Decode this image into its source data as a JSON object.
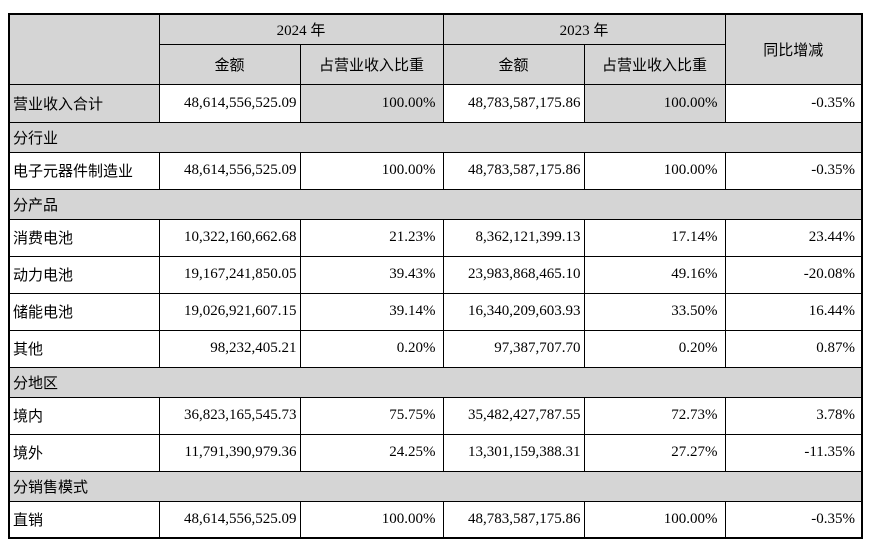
{
  "table": {
    "header": {
      "year_2024": "2024 年",
      "year_2023": "2023 年",
      "yoy": "同比增减",
      "amount": "金额",
      "ratio": "占营业收入比重"
    },
    "colors": {
      "shading_gray": "#d5d5d5",
      "border": "#000000",
      "cell_white": "#ffffff"
    },
    "rows": [
      {
        "type": "data",
        "label": "营业收入合计",
        "amount_2024": "48,614,556,525.09",
        "ratio_2024": "100.00%",
        "amount_2023": "48,783,587,175.86",
        "ratio_2023": "100.00%",
        "yoy": "-0.35%"
      },
      {
        "type": "section",
        "label": "分行业"
      },
      {
        "type": "data",
        "label": "电子元器件制造业",
        "amount_2024": "48,614,556,525.09",
        "ratio_2024": "100.00%",
        "amount_2023": "48,783,587,175.86",
        "ratio_2023": "100.00%",
        "yoy": "-0.35%"
      },
      {
        "type": "section",
        "label": "分产品"
      },
      {
        "type": "data",
        "label": "消费电池",
        "amount_2024": "10,322,160,662.68",
        "ratio_2024": "21.23%",
        "amount_2023": "8,362,121,399.13",
        "ratio_2023": "17.14%",
        "yoy": "23.44%"
      },
      {
        "type": "data",
        "label": "动力电池",
        "amount_2024": "19,167,241,850.05",
        "ratio_2024": "39.43%",
        "amount_2023": "23,983,868,465.10",
        "ratio_2023": "49.16%",
        "yoy": "-20.08%"
      },
      {
        "type": "data",
        "label": "储能电池",
        "amount_2024": "19,026,921,607.15",
        "ratio_2024": "39.14%",
        "amount_2023": "16,340,209,603.93",
        "ratio_2023": "33.50%",
        "yoy": "16.44%"
      },
      {
        "type": "data",
        "label": "其他",
        "amount_2024": "98,232,405.21",
        "ratio_2024": "0.20%",
        "amount_2023": "97,387,707.70",
        "ratio_2023": "0.20%",
        "yoy": "0.87%"
      },
      {
        "type": "section",
        "label": "分地区"
      },
      {
        "type": "data",
        "label": "境内",
        "amount_2024": "36,823,165,545.73",
        "ratio_2024": "75.75%",
        "amount_2023": "35,482,427,787.55",
        "ratio_2023": "72.73%",
        "yoy": "3.78%"
      },
      {
        "type": "data",
        "label": "境外",
        "amount_2024": "11,791,390,979.36",
        "ratio_2024": "24.25%",
        "amount_2023": "13,301,159,388.31",
        "ratio_2023": "27.27%",
        "yoy": "-11.35%"
      },
      {
        "type": "section",
        "label": "分销售模式"
      },
      {
        "type": "data",
        "label": "直销",
        "amount_2024": "48,614,556,525.09",
        "ratio_2024": "100.00%",
        "amount_2023": "48,783,587,175.86",
        "ratio_2023": "100.00%",
        "yoy": "-0.35%"
      }
    ]
  }
}
